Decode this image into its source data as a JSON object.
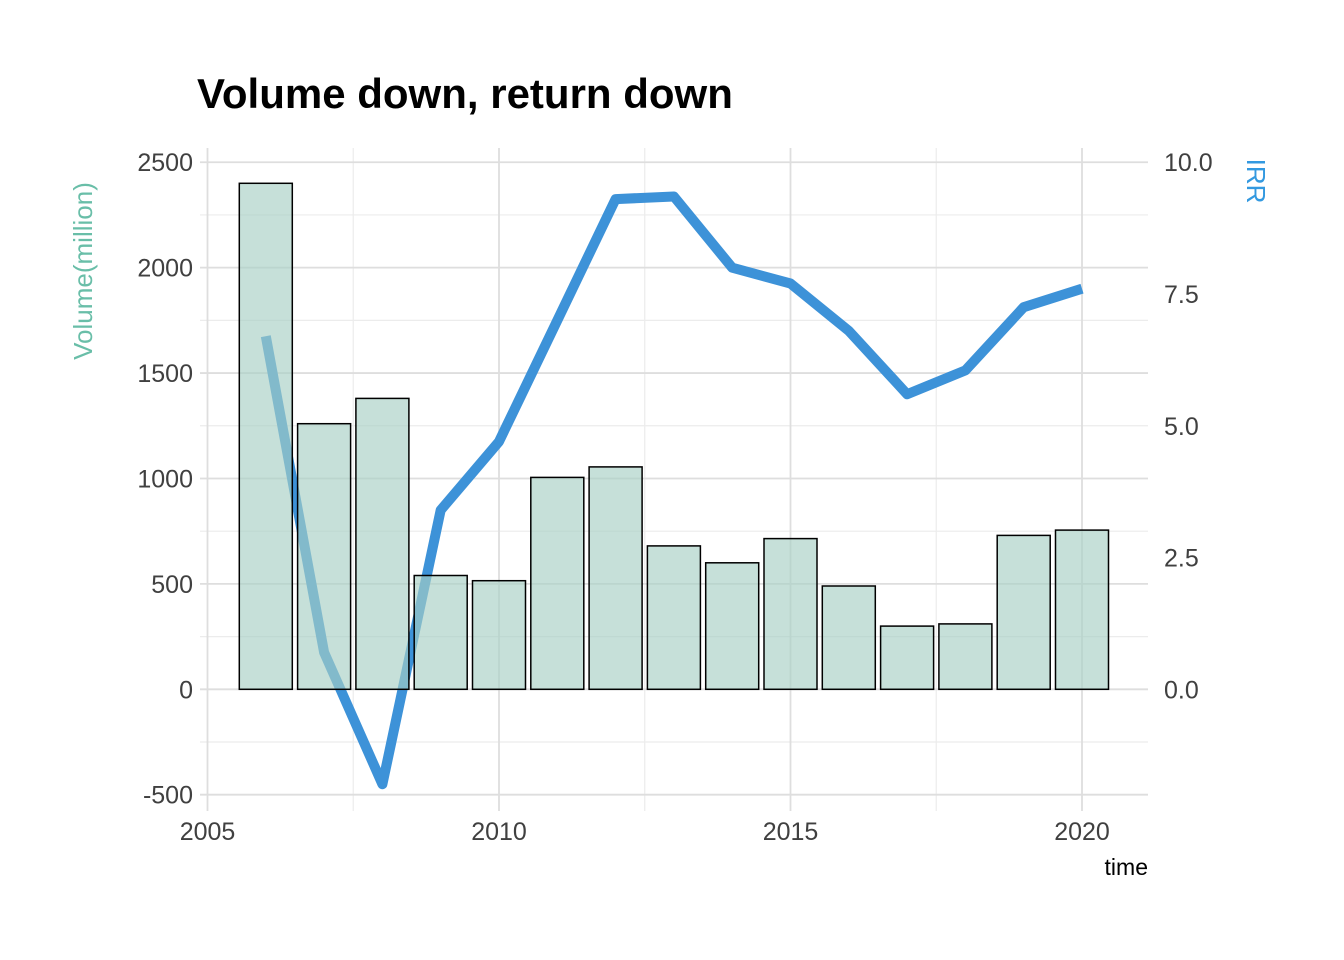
{
  "title": "Volume down, return down",
  "chart_data": {
    "type": "combo",
    "categories": [
      2006,
      2007,
      2008,
      2009,
      2010,
      2011,
      2012,
      2013,
      2014,
      2015,
      2016,
      2017,
      2018,
      2019,
      2020
    ],
    "series": [
      {
        "name": "Volume(million)",
        "type": "bar",
        "axis": "left",
        "values": [
          2400,
          1260,
          1380,
          540,
          515,
          1005,
          1055,
          680,
          600,
          715,
          490,
          300,
          310,
          730,
          755
        ]
      },
      {
        "name": "IRR",
        "type": "line",
        "axis": "right",
        "values": [
          6.7,
          0.7,
          -1.8,
          3.4,
          4.7,
          7.0,
          9.3,
          9.35,
          8.0,
          7.7,
          6.8,
          5.6,
          6.05,
          7.25,
          7.6
        ]
      }
    ],
    "x_axis": {
      "title": "time",
      "tick_labels": [
        "2005",
        "2010",
        "2015",
        "2020"
      ],
      "tick_values": [
        2005,
        2010,
        2015,
        2020
      ],
      "minor_tick_values": [
        2007.5,
        2012.5,
        2017.5
      ],
      "range": [
        2004.87,
        2021.13
      ]
    },
    "y_left": {
      "tick_labels": [
        "2500",
        "2000",
        "1500",
        "1000",
        "500",
        "0",
        "-500"
      ],
      "tick_values": [
        2500,
        2000,
        1500,
        1000,
        500,
        0,
        -500
      ],
      "minor_tick_values": [
        2250,
        1750,
        1250,
        750,
        250,
        -250
      ],
      "range": [
        -580,
        2570
      ]
    },
    "y_right": {
      "tick_labels": [
        "10.0",
        "7.5",
        "5.0",
        "2.5",
        "0.0"
      ],
      "tick_values": [
        10,
        7.5,
        5,
        2.5,
        0
      ],
      "scale_factor_to_left": 250,
      "range": [
        -2.32,
        10.28
      ]
    },
    "grid": true,
    "legend": "none",
    "colors": {
      "title": "#000000",
      "tick_labels": "#404040",
      "volume_axis_title": "#69BEA8",
      "irr_axis_title": "#3399E0",
      "line": "#3D92D8",
      "bar_fill": "#A8D0C4",
      "bar_fill_opacity": 0.65,
      "bar_border": "#000000",
      "grid_major": "#DEDEDE",
      "grid_minor": "#ECECEC",
      "background": "#FFFFFF"
    }
  }
}
